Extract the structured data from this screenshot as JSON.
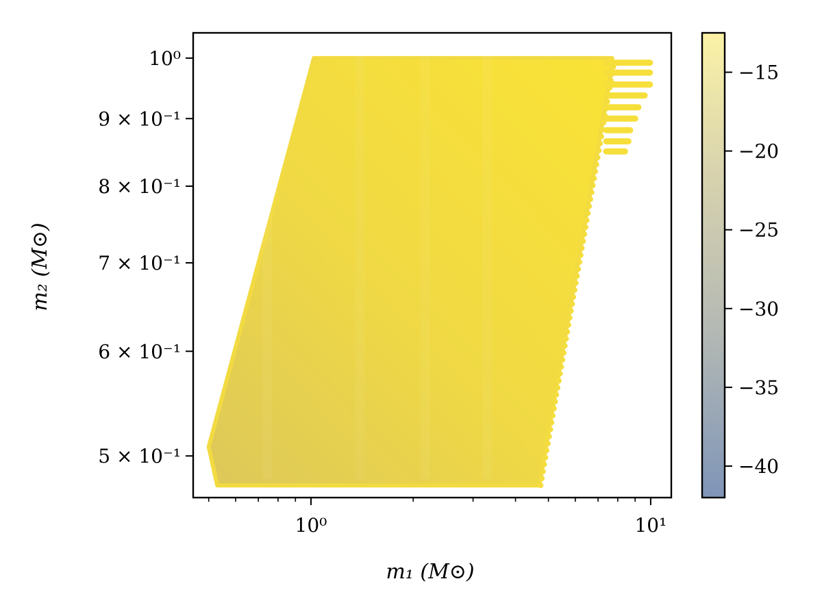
{
  "chart_data": {
    "type": "scatter",
    "title": "",
    "xlabel": "m₁ (M⊙)",
    "ylabel": "m₂ (M⊙)",
    "xscale": "log",
    "yscale": "log",
    "xlim": [
      0.45,
      11.5
    ],
    "ylim": [
      0.465,
      1.045
    ],
    "x_ticks": [
      {
        "value": 1,
        "label": "10⁰"
      },
      {
        "value": 10,
        "label": "10¹"
      }
    ],
    "y_ticks": [
      {
        "value": 0.5,
        "label": "5 × 10⁻¹"
      },
      {
        "value": 0.6,
        "label": "6 × 10⁻¹"
      },
      {
        "value": 0.7,
        "label": "7 × 10⁻¹"
      },
      {
        "value": 0.8,
        "label": "8 × 10⁻¹"
      },
      {
        "value": 0.9,
        "label": "9 × 10⁻¹"
      },
      {
        "value": 1.0,
        "label": "10⁰"
      }
    ],
    "colorbar": {
      "range": [
        -42,
        -12.5
      ],
      "ticks": [
        -15,
        -20,
        -25,
        -30,
        -35,
        -40
      ],
      "tick_labels": [
        "−15",
        "−20",
        "−25",
        "−30",
        "−35",
        "−40"
      ],
      "colors": [
        "#7f95b8",
        "#b3b8b4",
        "#d8d3ae",
        "#fbf2a6"
      ]
    },
    "region": {
      "description_color_low": "#ddc85a",
      "description_color_high": "#f9e437",
      "outline": [
        [
          0.5,
          0.508
        ],
        [
          0.53,
          0.475
        ],
        [
          4.7,
          0.475
        ],
        [
          7.7,
          0.985
        ],
        [
          7.7,
          1.0
        ],
        [
          1.02,
          1.0
        ],
        [
          0.5,
          0.508
        ]
      ],
      "fringe_rows": [
        {
          "y": 0.992,
          "x_end": 9.95
        },
        {
          "y": 0.975,
          "x_end": 9.95
        },
        {
          "y": 0.955,
          "x_end": 9.95
        },
        {
          "y": 0.937,
          "x_end": 9.6
        },
        {
          "y": 0.918,
          "x_end": 9.2
        },
        {
          "y": 0.9,
          "x_end": 9.0
        },
        {
          "y": 0.882,
          "x_end": 8.7
        },
        {
          "y": 0.865,
          "x_end": 8.6
        },
        {
          "y": 0.85,
          "x_end": 8.4
        }
      ]
    }
  }
}
